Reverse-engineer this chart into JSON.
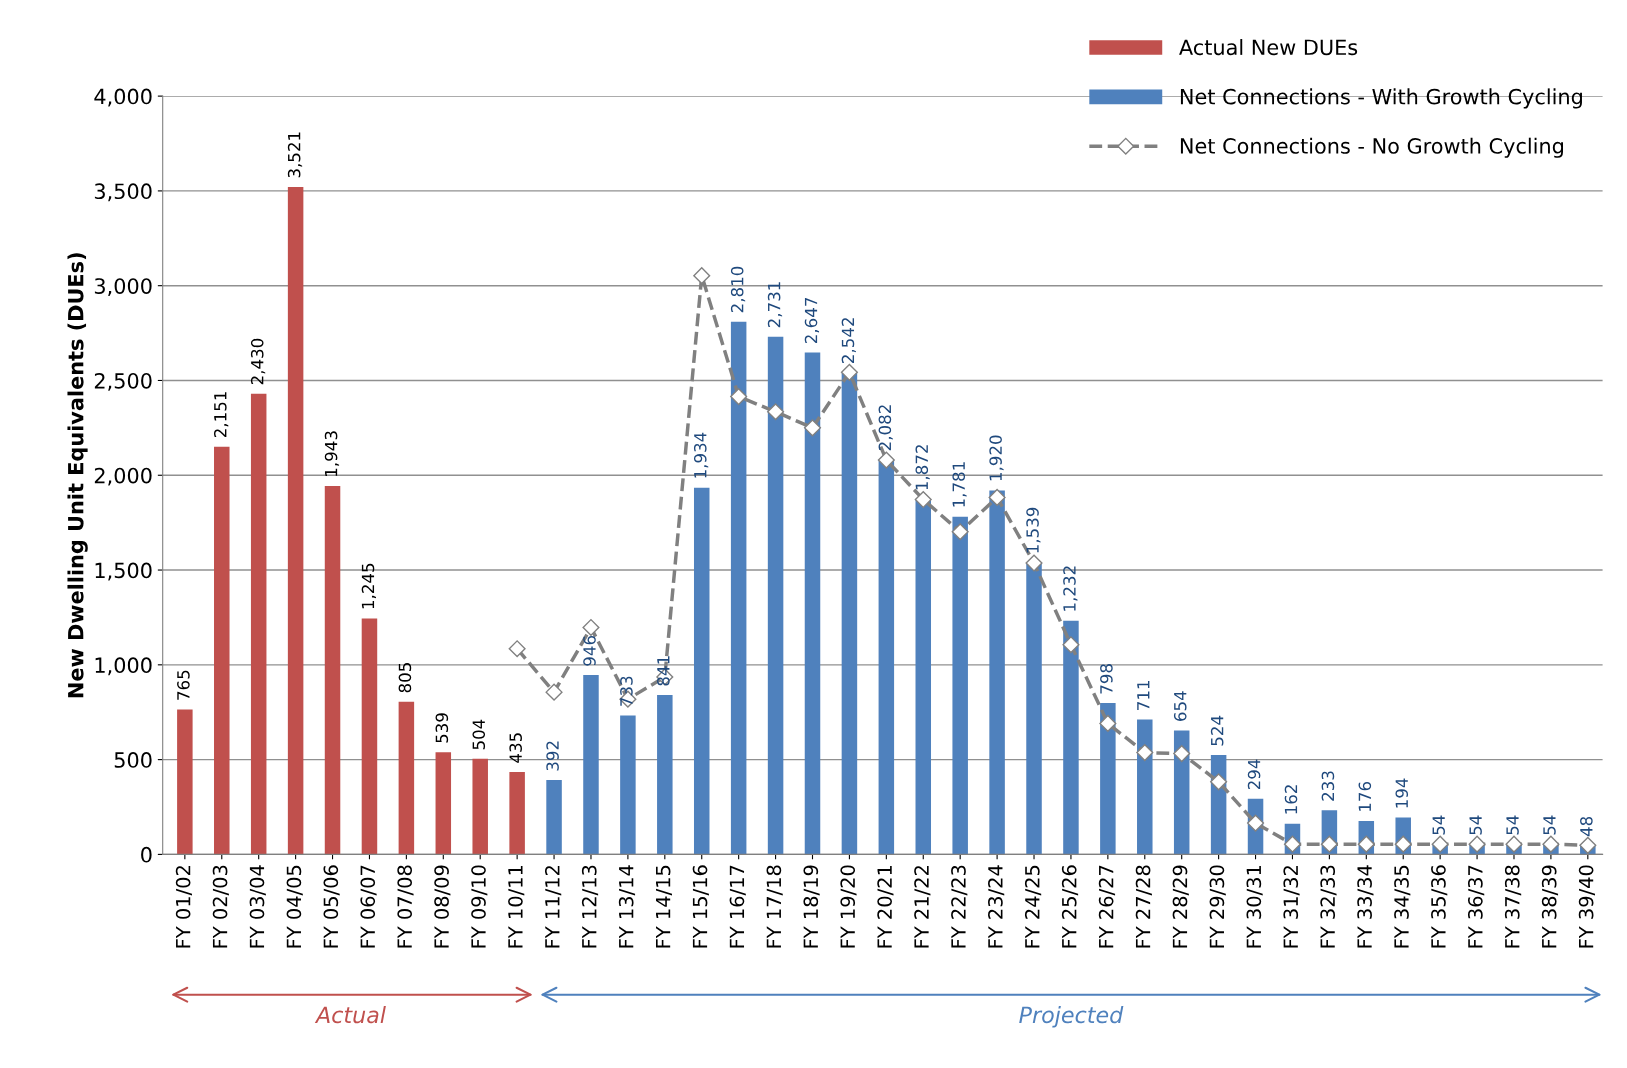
{
  "chart_data": {
    "type": "bar",
    "ylabel": "New Dwelling Unit Equivalents (DUEs)",
    "categories": [
      "FY 01/02",
      "FY 02/03",
      "FY 03/04",
      "FY 04/05",
      "FY 05/06",
      "FY 06/07",
      "FY 07/08",
      "FY 08/09",
      "FY 09/10",
      "FY 10/11",
      "FY 11/12",
      "FY 12/13",
      "FY 13/14",
      "FY 14/15",
      "FY 15/16",
      "FY 16/17",
      "FY 17/18",
      "FY 18/19",
      "FY 19/20",
      "FY 20/21",
      "FY 21/22",
      "FY 22/23",
      "FY 23/24",
      "FY 24/25",
      "FY 25/26",
      "FY 26/27",
      "FY 27/28",
      "FY 28/29",
      "FY 29/30",
      "FY 30/31",
      "FY 31/32",
      "FY 32/33",
      "FY 33/34",
      "FY 34/35",
      "FY 35/36",
      "FY 36/37",
      "FY 37/38",
      "FY 38/39",
      "FY 39/40"
    ],
    "series": [
      {
        "name": "Actual New DUEs",
        "color": "#c0504d",
        "values": [
          765,
          2151,
          2430,
          3521,
          1943,
          1245,
          805,
          539,
          504,
          435,
          null,
          null,
          null,
          null,
          null,
          null,
          null,
          null,
          null,
          null,
          null,
          null,
          null,
          null,
          null,
          null,
          null,
          null,
          null,
          null,
          null,
          null,
          null,
          null,
          null,
          null,
          null,
          null,
          null
        ],
        "value_labels": [
          "765",
          "2,151",
          "2,430",
          "3,521",
          "1,943",
          "1,245",
          "805",
          "539",
          "504",
          "435",
          null,
          null,
          null,
          null,
          null,
          null,
          null,
          null,
          null,
          null,
          null,
          null,
          null,
          null,
          null,
          null,
          null,
          null,
          null,
          null,
          null,
          null,
          null,
          null,
          null,
          null,
          null,
          null,
          null
        ]
      },
      {
        "name": "Net Connections - With Growth Cycling",
        "color": "#4f81bd",
        "values": [
          null,
          null,
          null,
          null,
          null,
          null,
          null,
          null,
          null,
          null,
          392,
          946,
          733,
          841,
          1934,
          2810,
          2731,
          2647,
          2542,
          2082,
          1872,
          1781,
          1920,
          1539,
          1232,
          798,
          711,
          654,
          524,
          294,
          162,
          233,
          176,
          194,
          54,
          54,
          54,
          54,
          48
        ],
        "value_labels": [
          null,
          null,
          null,
          null,
          null,
          null,
          null,
          null,
          null,
          null,
          "392",
          "946",
          "733",
          "841",
          "1,934",
          "2,810",
          "2,731",
          "2,647",
          "2,542",
          "2,082",
          "1,872",
          "1,781",
          "1,920",
          "1,539",
          "1,232",
          "798",
          "711",
          "654",
          "524",
          "294",
          "162",
          "233",
          "176",
          "194",
          "54",
          "54",
          "54",
          "54",
          "48"
        ]
      },
      {
        "name": "Net Connections - No Growth Cycling",
        "type": "line",
        "color": "#808080",
        "marker": "diamond",
        "line_style": "dashed",
        "values": [
          null,
          null,
          null,
          null,
          null,
          null,
          null,
          null,
          null,
          1085,
          856,
          1197,
          819,
          936,
          3053,
          2415,
          2335,
          2250,
          2543,
          2080,
          1872,
          1702,
          1883,
          1537,
          1106,
          691,
          537,
          532,
          383,
          165,
          54,
          54,
          54,
          54,
          54,
          54,
          54,
          54,
          48
        ]
      }
    ],
    "ylim": [
      0,
      4000
    ],
    "yticks": [
      0,
      500,
      {
        "value": 1000,
        "label": "1,000"
      },
      {
        "value": 1500,
        "label": "1,500"
      },
      {
        "value": 2000,
        "label": "2,000"
      },
      {
        "value": 2500,
        "label": "2,500"
      },
      {
        "value": 3000,
        "label": "3,000"
      },
      {
        "value": 3500,
        "label": "3,500"
      },
      {
        "value": 4000,
        "label": "4,000"
      }
    ],
    "grid": "y",
    "legend": "top right",
    "annotations": [
      "Actual",
      "Projected"
    ]
  }
}
